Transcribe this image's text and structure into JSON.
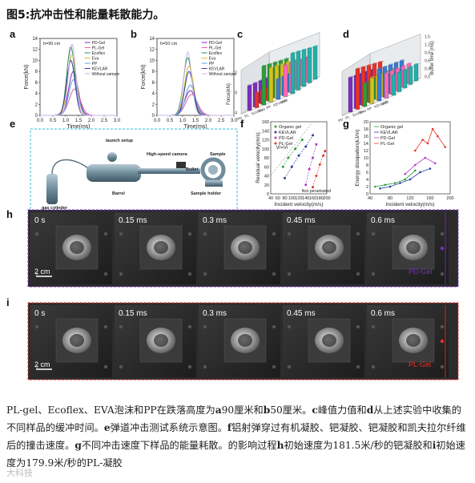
{
  "figure": {
    "title": "图5:抗冲击性和能量耗散能力。",
    "caption_html": "PL-gel、Ecoflex、EVA泡沫和PP在跌落高度为<b>a</b>90厘米和<b>b</b>50厘米。<b>c</b>峰值力值和<b>d</b>从上述实验中收集的不同样品的缓冲时间。<b>e</b>弹道冲击测试系统示意图。<b>f</b>铝射弹穿过有机凝胶、钯凝胶、钯凝胶和凯夫拉尔纤维后的撞击速度。<b>g</b>不同冲击速度下样品的能量耗散。的影响过程<b>h</b>初始速度为181.5米/秒的钯凝胶和<b>i</b>初始速度为179.9米/秒的PL-凝胶",
    "watermark": "大科技"
  },
  "colors": {
    "pd": "#7b2fbe",
    "pl": "#e8312a",
    "organic": "#2e9e3a",
    "kevlar": "#2a3f9e"
  },
  "chart_data": [
    {
      "panel": "a",
      "type": "line",
      "title": "h=90 cm",
      "xlabel": "Time(ms)",
      "ylabel": "Force(kN)",
      "xlim": [
        0,
        3.0
      ],
      "ylim": [
        0,
        14
      ],
      "xticks": [
        "0.0",
        "0.5",
        "1.0",
        "1.5",
        "2.0",
        "2.5",
        "3.0"
      ],
      "yticks": [
        "0",
        "2",
        "4",
        "6",
        "8",
        "10",
        "12",
        "14"
      ],
      "legend": [
        "PD-Gel",
        "PL-Gel",
        "Ecoflex",
        "Eva",
        "PP",
        "KEVLAR",
        "Without sample"
      ],
      "series": [
        {
          "name": "PD-Gel",
          "color": "#7b2fbe",
          "peak_x": 1.3,
          "peak_y": 8.0,
          "width": 0.26
        },
        {
          "name": "PL-Gel",
          "color": "#e85a9e",
          "peak_x": 1.35,
          "peak_y": 4.8,
          "width": 0.3
        },
        {
          "name": "Ecoflex",
          "color": "#2a8f4f",
          "peak_x": 1.2,
          "peak_y": 12.5,
          "width": 0.22
        },
        {
          "name": "Eva",
          "color": "#d4c020",
          "peak_x": 1.25,
          "peak_y": 11.0,
          "width": 0.24
        },
        {
          "name": "PP",
          "color": "#5aa0e0",
          "peak_x": 1.3,
          "peak_y": 6.5,
          "width": 0.25
        },
        {
          "name": "KEVLAR",
          "color": "#3a3ab0",
          "peak_x": 1.2,
          "peak_y": 10.0,
          "width": 0.23
        },
        {
          "name": "Without sample",
          "color": "#c8b4e8",
          "peak_x": 1.25,
          "peak_y": 13.0,
          "width": 0.2
        }
      ]
    },
    {
      "panel": "b",
      "type": "line",
      "title": "h=50 cm",
      "xlabel": "Time(ms)",
      "ylabel": "Force(kN)",
      "xlim": [
        0,
        3.0
      ],
      "ylim": [
        0,
        14
      ],
      "xticks": [
        "0.0",
        "0.5",
        "1.0",
        "1.5",
        "2.0",
        "2.5",
        "3.0"
      ],
      "yticks": [
        "0",
        "2",
        "4",
        "6",
        "8",
        "10",
        "12",
        "14"
      ],
      "legend": [
        "PD-Gel",
        "PL-Gel",
        "Ecoflex",
        "Eva",
        "PP",
        "KEVLAR",
        "Without sample"
      ],
      "series": [
        {
          "name": "PD-Gel",
          "color": "#7b2fbe",
          "peak_x": 1.3,
          "peak_y": 4.5,
          "width": 0.3
        },
        {
          "name": "PL-Gel",
          "color": "#e85a9e",
          "peak_x": 1.35,
          "peak_y": 3.8,
          "width": 0.32
        },
        {
          "name": "Ecoflex",
          "color": "#2a8f4f",
          "peak_x": 1.2,
          "peak_y": 10.5,
          "width": 0.24
        },
        {
          "name": "Eva",
          "color": "#d4c020",
          "peak_x": 1.25,
          "peak_y": 9.0,
          "width": 0.25
        },
        {
          "name": "PP",
          "color": "#5aa0e0",
          "peak_x": 1.3,
          "peak_y": 5.5,
          "width": 0.27
        },
        {
          "name": "KEVLAR",
          "color": "#3a3ab0",
          "peak_x": 1.25,
          "peak_y": 8.0,
          "width": 0.24
        },
        {
          "name": "Without sample",
          "color": "#c8b4e8",
          "peak_x": 1.2,
          "peak_y": 11.5,
          "width": 0.22
        }
      ]
    },
    {
      "panel": "f",
      "type": "scatter",
      "xlabel": "Incident velocity(m/s)",
      "ylabel": "Residual velocity(m/s)",
      "xlim": [
        40,
        200
      ],
      "ylim": [
        0,
        160
      ],
      "xticks": [
        "40",
        "60",
        "80",
        "100",
        "120",
        "140",
        "160",
        "180",
        "200"
      ],
      "yticks": [
        "0",
        "20",
        "40",
        "60",
        "80",
        "100",
        "120",
        "140",
        "160"
      ],
      "annotations": [
        "Vr=Vi",
        "Not penetrated"
      ],
      "series": [
        {
          "name": "Organic gel",
          "color": "#2e9e3a",
          "x": [
            75,
            90,
            110,
            130
          ],
          "y": [
            60,
            80,
            100,
            120
          ]
        },
        {
          "name": "KEVLAR",
          "color": "#2a3f9e",
          "x": [
            80,
            100,
            120,
            140,
            160
          ],
          "y": [
            35,
            60,
            85,
            105,
            130
          ]
        },
        {
          "name": "PD-Gel",
          "color": "#b03cc8",
          "x": [
            140,
            150,
            160,
            170
          ],
          "y": [
            20,
            55,
            80,
            110
          ]
        },
        {
          "name": "PL-Gel",
          "color": "#e8312a",
          "x": [
            160,
            170,
            180,
            190,
            195
          ],
          "y": [
            15,
            40,
            65,
            85,
            95
          ]
        }
      ]
    },
    {
      "panel": "g",
      "type": "line",
      "xlabel": "Incident velocity(m/s)",
      "ylabel": "Energy dissipation(kJ/m)",
      "xlim": [
        40,
        200
      ],
      "ylim": [
        0,
        20
      ],
      "xticks": [
        "40",
        "80",
        "120",
        "160",
        "200"
      ],
      "yticks": [
        "0",
        "2",
        "4",
        "6",
        "8",
        "10",
        "12",
        "14",
        "16",
        "18",
        "20"
      ],
      "series": [
        {
          "name": "Organic gel",
          "color": "#2e9e3a",
          "x": [
            50,
            70,
            90,
            110,
            130
          ],
          "y": [
            2.0,
            2.5,
            3.0,
            4.0,
            6.5
          ]
        },
        {
          "name": "KEVLAR",
          "color": "#2a3f9e",
          "x": [
            60,
            80,
            100,
            120,
            140,
            160
          ],
          "y": [
            1.5,
            2.0,
            3.0,
            4.0,
            6.0,
            7.0
          ]
        },
        {
          "name": "PD-Gel",
          "color": "#b03cc8",
          "x": [
            110,
            130,
            150,
            170
          ],
          "y": [
            5.5,
            8.0,
            10.0,
            8.5
          ]
        },
        {
          "name": "PL-Gel",
          "color": "#e8312a",
          "x": [
            130,
            145,
            155,
            165,
            175,
            190
          ],
          "y": [
            12.0,
            15.0,
            14.0,
            18.0,
            16.0,
            13.0
          ]
        }
      ]
    },
    {
      "panel": "c",
      "type": "bar",
      "ylabel": "Force(kN)",
      "zticks": [
        "4",
        "8",
        "12"
      ],
      "categories": [
        "PD",
        "PL",
        "Ecoflex",
        "Eva",
        "PP",
        "KEVLAR",
        "W/O"
      ],
      "values": [
        8.0,
        4.8,
        12.5,
        11.0,
        6.5,
        10.0,
        13.0
      ]
    },
    {
      "panel": "d",
      "type": "bar",
      "ylabel": "Buffer time (ms)",
      "zticks": [
        "0.0",
        "0.3",
        "0.6",
        "0.9",
        "1.2",
        "1.5"
      ],
      "categories": [
        "PD",
        "PL",
        "Ecoflex",
        "Eva",
        "PP",
        "KEVLAR",
        "W/O"
      ],
      "values": [
        1.2,
        1.4,
        0.8,
        0.9,
        1.1,
        0.85,
        0.7
      ]
    }
  ],
  "panels": {
    "letters": [
      "a",
      "b",
      "c",
      "d",
      "e",
      "f",
      "g",
      "h",
      "i"
    ],
    "e": {
      "labels": [
        "launch setup",
        "High-speed camera",
        "Sample",
        "Bullet",
        "Barrel",
        "Sample holder",
        "gas cylinder"
      ]
    },
    "h": {
      "times": [
        "0 s",
        "0.15 ms",
        "0.3 ms",
        "0.45 ms",
        "0.6 ms"
      ],
      "scale": "2 cm",
      "tag": "PD-Gel"
    },
    "i": {
      "times": [
        "0 s",
        "0.15 ms",
        "0.3 ms",
        "0.45 ms",
        "0.6 ms"
      ],
      "scale": "2 cm",
      "tag": "PL-Gel"
    }
  }
}
